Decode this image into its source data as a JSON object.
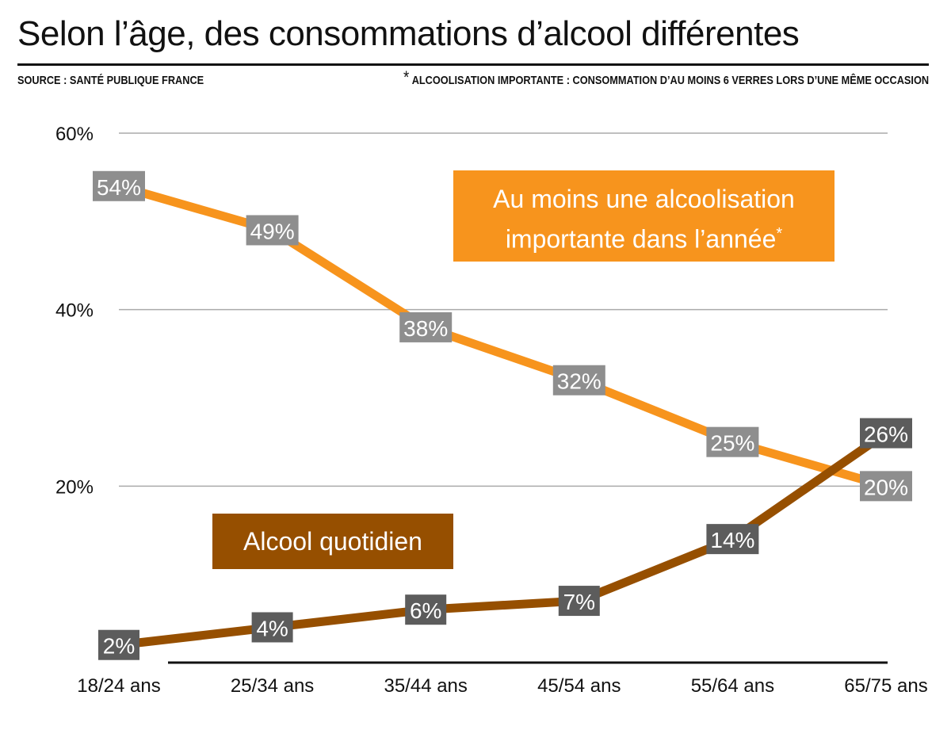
{
  "title": "Selon l’âge, des consommations d’alcool différentes",
  "source": "SOURCE :  SANTÉ PUBLIQUE FRANCE",
  "note_marker": "*",
  "note": "ALCOOLISATION IMPORTANTE : CONSOMMATION D’AU MOINS 6 VERRES LORS D’UNE MÊME OCCASION",
  "chart_data": {
    "type": "line",
    "categories": [
      "18/24 ans",
      "25/34 ans",
      "35/44 ans",
      "45/54 ans",
      "55/64 ans",
      "65/75 ans"
    ],
    "ylim": [
      0,
      60
    ],
    "yticks": [
      20,
      40,
      60
    ],
    "ytick_labels": [
      "20%",
      "40%",
      "60%"
    ],
    "grid": true,
    "series": [
      {
        "name": "Au moins une alcoolisation importante dans l’année",
        "name_line1": "Au moins une alcoolisation",
        "name_line2": "importante dans l’année",
        "name_marker": "*",
        "values": [
          54,
          49,
          38,
          32,
          25,
          20
        ],
        "color": "#f7941d",
        "label_bg": "#8e8e8e"
      },
      {
        "name": "Alcool quotidien",
        "values": [
          2,
          4,
          6,
          7,
          14,
          26
        ],
        "color": "#964f00",
        "label_bg": "#5c5c5c"
      }
    ]
  }
}
